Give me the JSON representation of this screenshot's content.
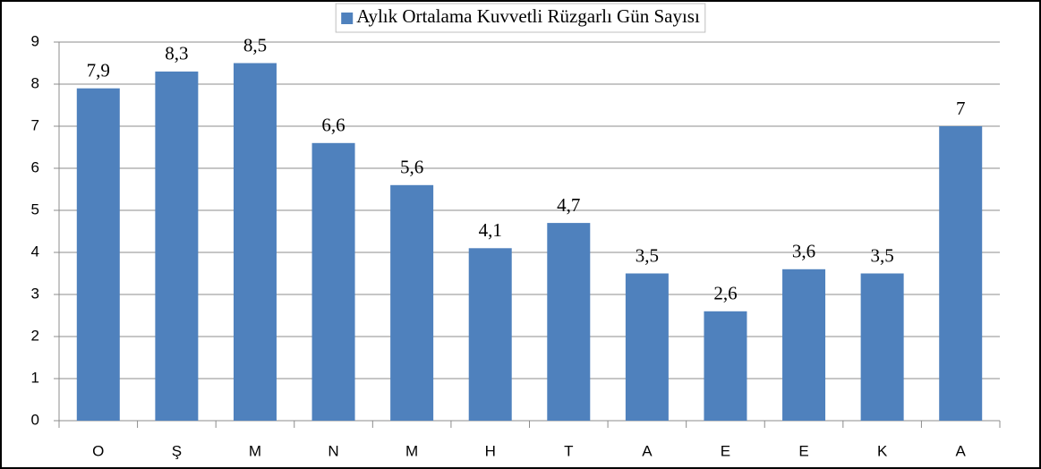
{
  "chart_data": {
    "type": "bar",
    "categories": [
      "O",
      "Ş",
      "M",
      "N",
      "M",
      "H",
      "T",
      "A",
      "E",
      "E",
      "K",
      "A"
    ],
    "series": [
      {
        "name": "Aylık Ortalama Kuvvetli Rüzgarlı Gün Sayısı",
        "color": "#4f81bd",
        "values": [
          7.9,
          8.3,
          8.5,
          6.6,
          5.6,
          4.1,
          4.7,
          3.5,
          2.6,
          3.6,
          3.5,
          7
        ],
        "value_labels": [
          "7,9",
          "8,3",
          "8,5",
          "6,6",
          "5,6",
          "4,1",
          "4,7",
          "3,5",
          "2,6",
          "3,6",
          "3,5",
          "7"
        ]
      }
    ],
    "ylim": [
      0,
      9
    ],
    "yticks": [
      0,
      1,
      2,
      3,
      4,
      5,
      6,
      7,
      8,
      9
    ],
    "grid": true,
    "legend": "top"
  }
}
